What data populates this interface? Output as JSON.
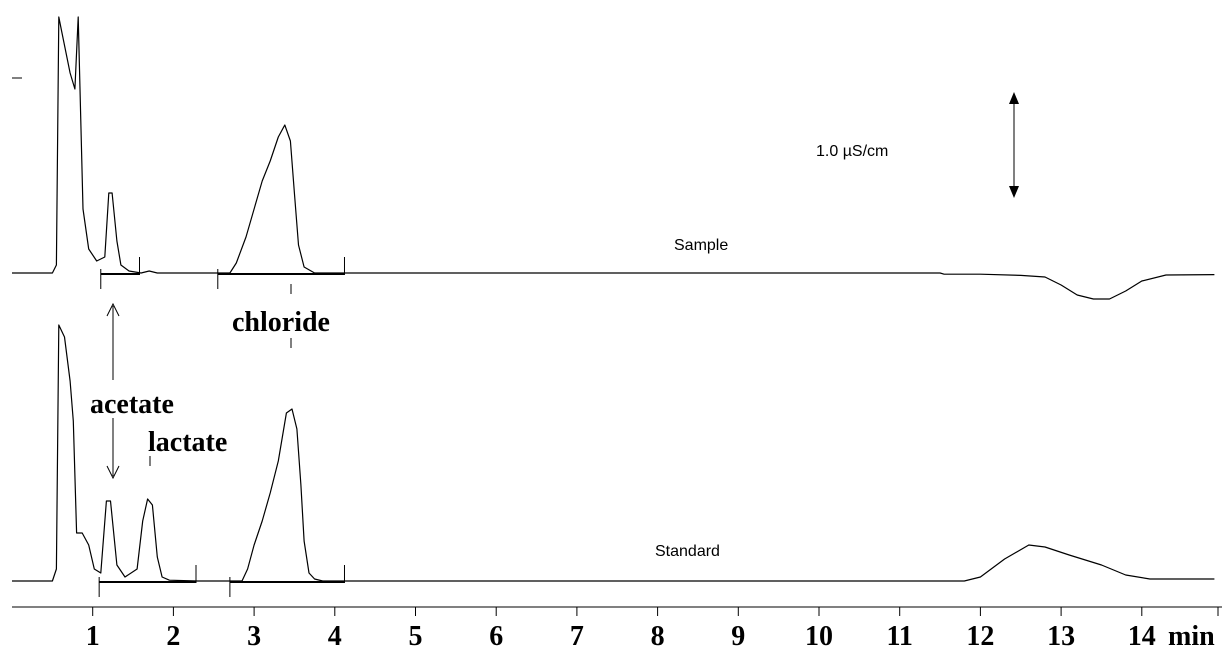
{
  "chart_data": {
    "type": "line",
    "xlabel": "",
    "x_unit": "min",
    "ylabel": "",
    "xlim": [
      0,
      14.9
    ],
    "x_ticks": [
      1,
      2,
      3,
      4,
      5,
      6,
      7,
      8,
      9,
      10,
      11,
      12,
      13,
      14
    ],
    "tick_labels": [
      "1",
      "2",
      "3",
      "4",
      "5",
      "6",
      "7",
      "8",
      "9",
      "10",
      "11",
      "12",
      "13",
      "14"
    ],
    "scale_bar": {
      "label": "1.0 µS/cm",
      "value": 1.0
    },
    "grid": false,
    "series": [
      {
        "name": "Sample",
        "baseline": 0,
        "points": [
          [
            0.0,
            0.0
          ],
          [
            0.5,
            0.0
          ],
          [
            0.55,
            0.2
          ],
          [
            0.58,
            6.4
          ],
          [
            0.62,
            6.0
          ],
          [
            0.72,
            5.0
          ],
          [
            0.78,
            4.6
          ],
          [
            0.82,
            6.4
          ],
          [
            0.88,
            1.6
          ],
          [
            0.95,
            0.6
          ],
          [
            1.05,
            0.3
          ],
          [
            1.15,
            0.4
          ],
          [
            1.2,
            2.0
          ],
          [
            1.24,
            2.0
          ],
          [
            1.3,
            0.8
          ],
          [
            1.35,
            0.2
          ],
          [
            1.45,
            0.05
          ],
          [
            1.6,
            0.0
          ],
          [
            1.7,
            0.05
          ],
          [
            1.8,
            0.0
          ],
          [
            2.7,
            0.0
          ],
          [
            2.78,
            0.25
          ],
          [
            2.9,
            0.9
          ],
          [
            3.0,
            1.6
          ],
          [
            3.1,
            2.3
          ],
          [
            3.2,
            2.8
          ],
          [
            3.3,
            3.4
          ],
          [
            3.38,
            3.7
          ],
          [
            3.45,
            3.3
          ],
          [
            3.5,
            2.0
          ],
          [
            3.55,
            0.7
          ],
          [
            3.62,
            0.15
          ],
          [
            3.75,
            0.0
          ],
          [
            11.5,
            0.0
          ],
          [
            11.55,
            -0.03
          ],
          [
            12.0,
            -0.03
          ],
          [
            12.5,
            -0.06
          ],
          [
            12.8,
            -0.1
          ],
          [
            13.0,
            -0.3
          ],
          [
            13.2,
            -0.55
          ],
          [
            13.4,
            -0.65
          ],
          [
            13.6,
            -0.65
          ],
          [
            13.8,
            -0.45
          ],
          [
            14.0,
            -0.2
          ],
          [
            14.3,
            -0.05
          ],
          [
            14.9,
            -0.04
          ]
        ]
      },
      {
        "name": "Standard",
        "baseline": 0,
        "points": [
          [
            0.0,
            0.0
          ],
          [
            0.5,
            0.0
          ],
          [
            0.55,
            0.3
          ],
          [
            0.58,
            6.4
          ],
          [
            0.65,
            6.1
          ],
          [
            0.72,
            5.0
          ],
          [
            0.76,
            4.0
          ],
          [
            0.8,
            1.2
          ],
          [
            0.87,
            1.2
          ],
          [
            0.95,
            0.9
          ],
          [
            1.02,
            0.3
          ],
          [
            1.1,
            0.2
          ],
          [
            1.17,
            2.0
          ],
          [
            1.22,
            2.0
          ],
          [
            1.3,
            0.4
          ],
          [
            1.4,
            0.1
          ],
          [
            1.55,
            0.3
          ],
          [
            1.62,
            1.5
          ],
          [
            1.68,
            2.05
          ],
          [
            1.74,
            1.9
          ],
          [
            1.8,
            0.6
          ],
          [
            1.86,
            0.1
          ],
          [
            1.95,
            0.02
          ],
          [
            2.3,
            0.0
          ],
          [
            2.85,
            0.0
          ],
          [
            2.92,
            0.3
          ],
          [
            3.0,
            0.9
          ],
          [
            3.1,
            1.5
          ],
          [
            3.2,
            2.2
          ],
          [
            3.3,
            3.0
          ],
          [
            3.4,
            4.2
          ],
          [
            3.47,
            4.3
          ],
          [
            3.53,
            3.8
          ],
          [
            3.58,
            2.4
          ],
          [
            3.62,
            1.0
          ],
          [
            3.68,
            0.2
          ],
          [
            3.75,
            0.05
          ],
          [
            3.85,
            0.0
          ],
          [
            11.8,
            0.0
          ],
          [
            12.0,
            0.1
          ],
          [
            12.3,
            0.55
          ],
          [
            12.6,
            0.9
          ],
          [
            12.8,
            0.85
          ],
          [
            13.1,
            0.65
          ],
          [
            13.5,
            0.4
          ],
          [
            13.8,
            0.15
          ],
          [
            14.1,
            0.05
          ],
          [
            14.9,
            0.05
          ]
        ]
      }
    ],
    "integration_bars": [
      {
        "series": "Sample",
        "segments": [
          [
            1.1,
            1.58
          ],
          [
            2.55,
            4.12
          ]
        ]
      },
      {
        "series": "Standard",
        "segments": [
          [
            1.08,
            2.28
          ],
          [
            2.7,
            4.12
          ]
        ]
      }
    ],
    "annotations": [
      {
        "text": "chloride",
        "x": 3.48
      },
      {
        "text": "acetate",
        "x": 1.22
      },
      {
        "text": "lactate",
        "x": 1.7
      }
    ]
  },
  "labels": {
    "sample": "Sample",
    "standard": "Standard",
    "scale": "1.0 µS/cm",
    "chloride": "chloride",
    "acetate": "acetate",
    "lactate": "lactate",
    "unit": "min"
  }
}
